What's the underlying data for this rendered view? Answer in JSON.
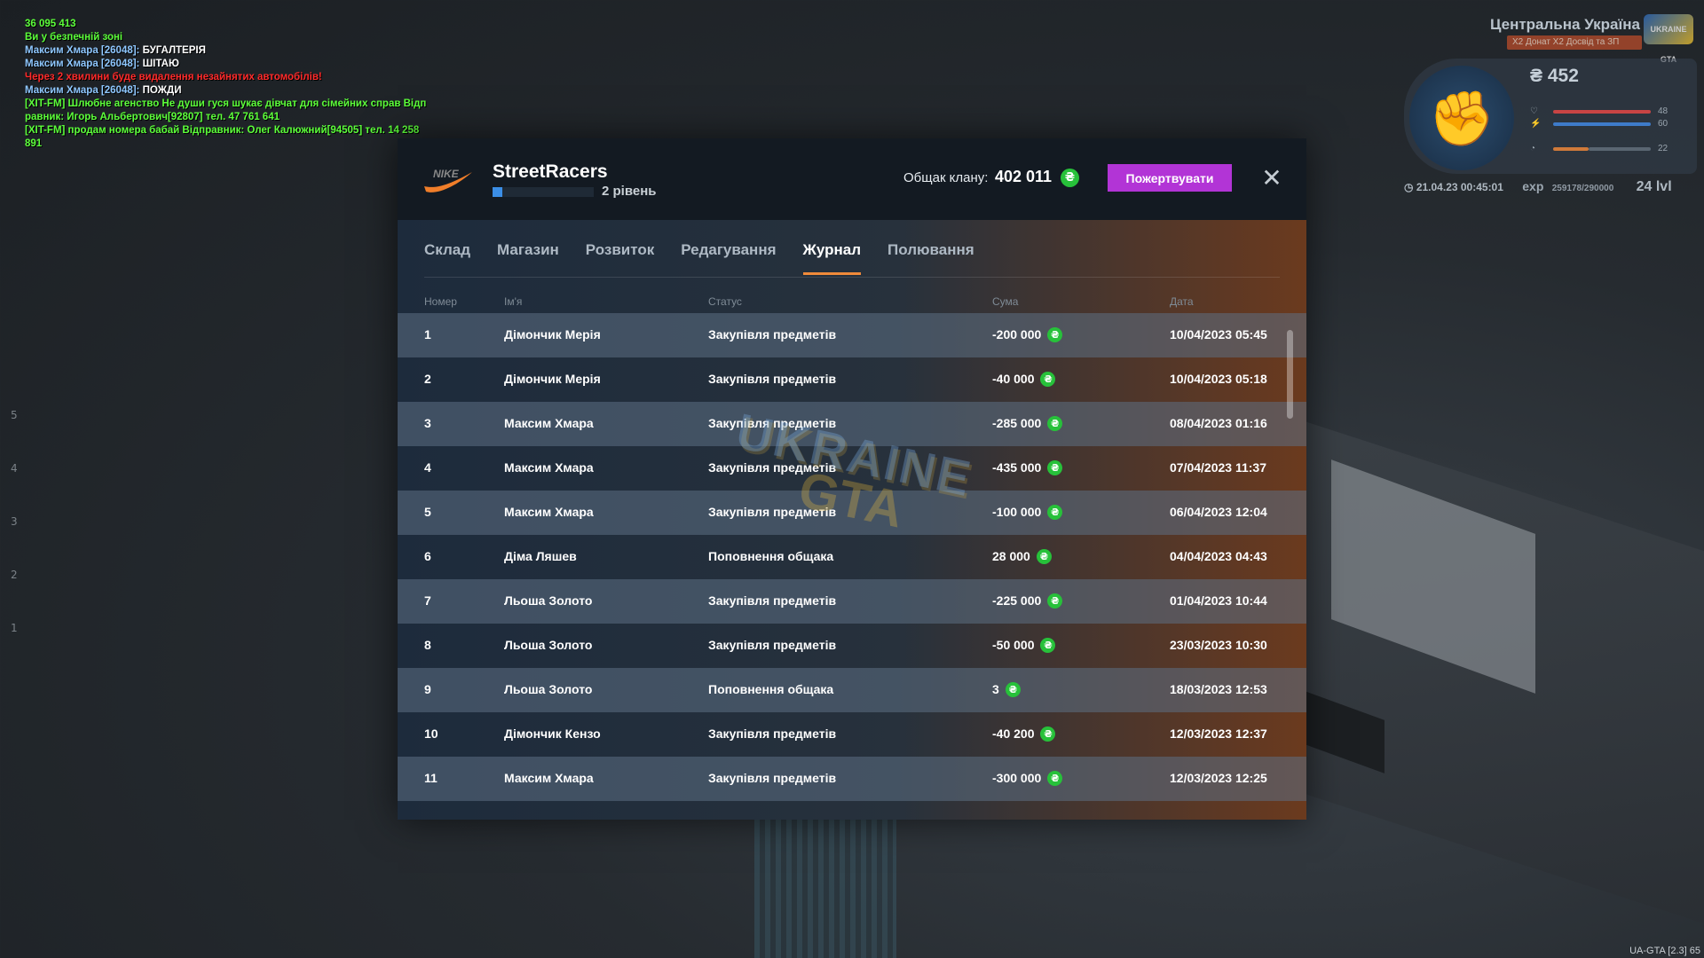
{
  "chat": [
    {
      "parts": [
        {
          "text": "36 095 413",
          "color": "green"
        }
      ]
    },
    {
      "parts": [
        {
          "text": "Ви у безпечній зоні",
          "color": "green"
        }
      ]
    },
    {
      "parts": [
        {
          "text": "Максим Хмара [26048]: ",
          "color": "blue"
        },
        {
          "text": "БУГАЛТЕРІЯ",
          "color": "white"
        }
      ]
    },
    {
      "parts": [
        {
          "text": "Максим Хмара [26048]: ",
          "color": "blue"
        },
        {
          "text": "ШІТАЮ",
          "color": "white"
        }
      ]
    },
    {
      "parts": [
        {
          "text": "Через 2 хвилини буде видалення незайнятих автомобілів!",
          "color": "red"
        }
      ]
    },
    {
      "parts": [
        {
          "text": "Максим Хмара [26048]: ",
          "color": "blue"
        },
        {
          "text": "ПОЖДИ",
          "color": "white"
        }
      ]
    },
    {
      "parts": [
        {
          "text": "[XIT-FM] Шлюбне агенство Не души гуся шукає дівчат для сімейних справ Відп",
          "color": "green"
        }
      ]
    },
    {
      "parts": [
        {
          "text": "равник: Игорь Альбертович[92807] тел. 47 761 641",
          "color": "green"
        }
      ]
    },
    {
      "parts": [
        {
          "text": "[XIT-FM] продам номера бабай Відправник: Олег Калюжний[94505] тел. 14 258",
          "color": "green"
        }
      ]
    },
    {
      "parts": [
        {
          "text": " 891",
          "color": "green"
        }
      ]
    }
  ],
  "hud": {
    "region": "Центральна Україна",
    "bonus": "X2 Донат X2 Досвід та ЗП",
    "logo": "UKRAINE GTA",
    "money": "452",
    "health": "48",
    "armor": "60",
    "hunger": "22",
    "datetime": "21.04.23 00:45:01",
    "exp_label": "exp",
    "exp_value": "259178/290000",
    "level": "24 lvl"
  },
  "version": "UA-GTA [2.3] 65",
  "left_numbers": [
    "5",
    "4",
    "3",
    "2",
    "1"
  ],
  "clan": {
    "name": "StreetRacers",
    "level_text": "2 рівень",
    "level_progress": 0.1,
    "bank_label": "Общак клану:",
    "bank_value": "402 011",
    "donate_label": "Пожертвувати",
    "close": "✕"
  },
  "tabs": [
    {
      "label": "Склад",
      "active": false
    },
    {
      "label": "Магазин",
      "active": false
    },
    {
      "label": "Розвиток",
      "active": false
    },
    {
      "label": "Редагування",
      "active": false
    },
    {
      "label": "Журнал",
      "active": true
    },
    {
      "label": "Полювання",
      "active": false
    }
  ],
  "columns": {
    "num": "Номер",
    "name": "Ім'я",
    "status": "Статус",
    "sum": "Сума",
    "date": "Дата"
  },
  "currency_symbol": "₴",
  "watermark": {
    "line1": "UKRAINE",
    "line2": "GTA"
  },
  "journal": [
    {
      "num": "1",
      "name": "Дімончик Мерія",
      "status": "Закупівля предметів",
      "sum": "-200 000",
      "date": "10/04/2023 05:45"
    },
    {
      "num": "2",
      "name": "Дімончик Мерія",
      "status": "Закупівля предметів",
      "sum": "-40 000",
      "date": "10/04/2023 05:18"
    },
    {
      "num": "3",
      "name": "Максим Хмара",
      "status": "Закупівля предметів",
      "sum": "-285 000",
      "date": "08/04/2023 01:16"
    },
    {
      "num": "4",
      "name": "Максим Хмара",
      "status": "Закупівля предметів",
      "sum": "-435 000",
      "date": "07/04/2023 11:37"
    },
    {
      "num": "5",
      "name": "Максим Хмара",
      "status": "Закупівля предметів",
      "sum": "-100 000",
      "date": "06/04/2023 12:04"
    },
    {
      "num": "6",
      "name": "Діма Ляшев",
      "status": "Поповнення общака",
      "sum": "28 000",
      "date": "04/04/2023 04:43"
    },
    {
      "num": "7",
      "name": "Льоша Золото",
      "status": "Закупівля предметів",
      "sum": "-225 000",
      "date": "01/04/2023 10:44"
    },
    {
      "num": "8",
      "name": "Льоша Золото",
      "status": "Закупівля предметів",
      "sum": "-50 000",
      "date": "23/03/2023 10:30"
    },
    {
      "num": "9",
      "name": "Льоша Золото",
      "status": "Поповнення общака",
      "sum": "3",
      "date": "18/03/2023 12:53"
    },
    {
      "num": "10",
      "name": "Дімончик Кензо",
      "status": "Закупівля предметів",
      "sum": "-40 200",
      "date": "12/03/2023 12:37"
    },
    {
      "num": "11",
      "name": "Максим Хмара",
      "status": "Закупівля предметів",
      "sum": "-300 000",
      "date": "12/03/2023 12:25"
    }
  ]
}
